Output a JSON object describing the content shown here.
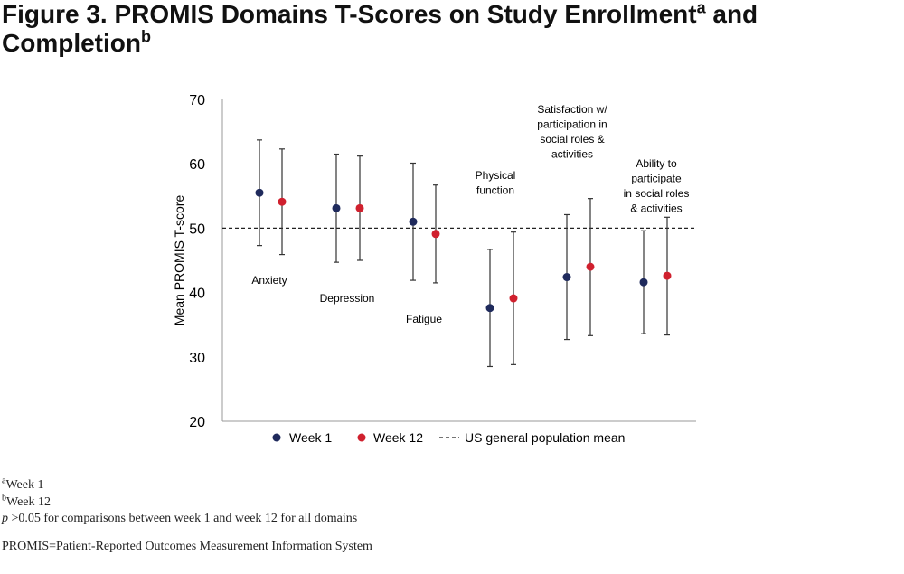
{
  "figure": {
    "title_part1": "Figure 3. PROMIS Domains T-Scores on Study Enrollment",
    "title_sup1": "a",
    "title_part2": " and Completion",
    "title_sup2": "b"
  },
  "chart_data": {
    "type": "scatter",
    "ylabel": "Mean PROMIS T-score",
    "ylim": [
      20,
      70
    ],
    "yticks": [
      20,
      30,
      40,
      50,
      60,
      70
    ],
    "grid": false,
    "reference_line": {
      "value": 50,
      "label": "US general population mean"
    },
    "categories": [
      {
        "lines": [
          "Anxiety"
        ]
      },
      {
        "lines": [
          "Depression"
        ]
      },
      {
        "lines": [
          "Fatigue"
        ]
      },
      {
        "lines": [
          "Physical",
          "function"
        ]
      },
      {
        "lines": [
          "Satisfaction w/",
          "participation in",
          "social roles &",
          "activities"
        ]
      },
      {
        "lines": [
          "Ability to",
          "participate",
          "in social roles",
          "& activities"
        ]
      }
    ],
    "series": [
      {
        "name": "Week 1",
        "color": "#1f2a5c",
        "values": [
          55.5,
          53.1,
          51.0,
          37.6,
          42.4,
          41.6
        ],
        "lower": [
          47.3,
          44.7,
          41.9,
          28.5,
          32.7,
          33.6
        ],
        "upper": [
          63.7,
          61.5,
          60.1,
          46.7,
          52.1,
          49.6
        ]
      },
      {
        "name": "Week 12",
        "color": "#d0202e",
        "values": [
          54.1,
          53.1,
          49.1,
          39.1,
          44.0,
          42.6
        ],
        "lower": [
          45.9,
          45.0,
          41.5,
          28.8,
          33.3,
          33.4
        ],
        "upper": [
          62.3,
          61.2,
          56.7,
          49.4,
          54.6,
          51.7
        ]
      }
    ],
    "legend_position": "bottom"
  },
  "notes": {
    "a_sup": "a",
    "a_text": "Week 1",
    "b_sup": "b",
    "b_text": "Week 12",
    "p_label": "p",
    "p_text": " >0.05 for comparisons between week 1 and week 12 for all domains",
    "abbrev": "PROMIS=Patient-Reported Outcomes Measurement Information System"
  }
}
